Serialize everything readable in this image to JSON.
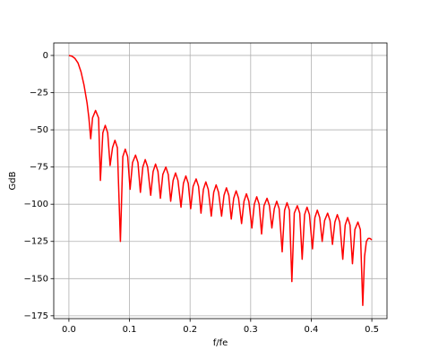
{
  "chart_data": {
    "type": "line",
    "x_label": "f/fe",
    "y_label": "GdB",
    "xlim": [
      -0.025,
      0.525
    ],
    "ylim": [
      -176.9,
      8.4
    ],
    "xticks": [
      {
        "value": 0,
        "label": "0.0"
      },
      0.1,
      0.2,
      0.3,
      0.4,
      0.5
    ],
    "yticks": [
      0,
      {
        "value": -25,
        "label": "−25"
      },
      {
        "value": -50,
        "label": "−50"
      },
      {
        "value": -75,
        "label": "−75"
      },
      {
        "value": -100,
        "label": "−100"
      },
      {
        "value": -125,
        "label": "−125"
      },
      {
        "value": -150,
        "label": "−150"
      },
      {
        "value": -175,
        "label": "−175"
      }
    ],
    "grid": true,
    "x": [
      0,
      0.005,
      0.01,
      0.015,
      0.02,
      0.025,
      0.03,
      0.033,
      0.036,
      0.039,
      0.044,
      0.049,
      0.052,
      0.056,
      0.06,
      0.064,
      0.068,
      0.072,
      0.076,
      0.08,
      0.085,
      0.089,
      0.093,
      0.097,
      0.101,
      0.105,
      0.11,
      0.114,
      0.118,
      0.122,
      0.126,
      0.13,
      0.135,
      0.139,
      0.143,
      0.147,
      0.151,
      0.155,
      0.16,
      0.164,
      0.168,
      0.172,
      0.176,
      0.18,
      0.185,
      0.189,
      0.193,
      0.197,
      0.201,
      0.205,
      0.21,
      0.214,
      0.218,
      0.222,
      0.226,
      0.23,
      0.235,
      0.239,
      0.243,
      0.247,
      0.252,
      0.256,
      0.26,
      0.264,
      0.268,
      0.272,
      0.276,
      0.28,
      0.285,
      0.289,
      0.293,
      0.297,
      0.302,
      0.306,
      0.31,
      0.314,
      0.318,
      0.322,
      0.327,
      0.331,
      0.335,
      0.339,
      0.343,
      0.347,
      0.352,
      0.356,
      0.36,
      0.364,
      0.368,
      0.372,
      0.377,
      0.381,
      0.385,
      0.389,
      0.393,
      0.397,
      0.402,
      0.406,
      0.41,
      0.414,
      0.418,
      0.422,
      0.427,
      0.431,
      0.435,
      0.439,
      0.443,
      0.447,
      0.452,
      0.456,
      0.46,
      0.464,
      0.468,
      0.472,
      0.477,
      0.481,
      0.485,
      0.488,
      0.491,
      0.494,
      0.497,
      0.5
    ],
    "series": [
      {
        "color": "#ff0000",
        "values": [
          0,
          -0.5,
          -2,
          -5,
          -11,
          -20,
          -32,
          -42,
          -56,
          -42,
          -37,
          -42,
          -84,
          -52,
          -47,
          -52,
          -74,
          -62,
          -57,
          -62,
          -125,
          -68,
          -63,
          -68,
          -90,
          -72,
          -67,
          -72,
          -92,
          -75,
          -70,
          -75,
          -94,
          -78,
          -73,
          -78,
          -96,
          -80,
          -75,
          -80,
          -98,
          -84,
          -79,
          -84,
          -102,
          -86,
          -81,
          -86,
          -103,
          -88,
          -83,
          -88,
          -106,
          -90,
          -85,
          -90,
          -108,
          -92,
          -87,
          -92,
          -108,
          -94,
          -89,
          -94,
          -110,
          -96,
          -91,
          -96,
          -113,
          -98,
          -93,
          -98,
          -116,
          -100,
          -95,
          -100,
          -120,
          -101,
          -96,
          -101,
          -116,
          -103,
          -98,
          -103,
          -132,
          -104,
          -99,
          -104,
          -152,
          -106,
          -101,
          -106,
          -137,
          -107,
          -102,
          -107,
          -130,
          -109,
          -104,
          -109,
          -125,
          -111,
          -106,
          -111,
          -127,
          -112,
          -107,
          -112,
          -137,
          -114,
          -109,
          -114,
          -140,
          -117,
          -112,
          -117,
          -168,
          -135,
          -125,
          -123,
          -123,
          -124
        ]
      }
    ]
  }
}
